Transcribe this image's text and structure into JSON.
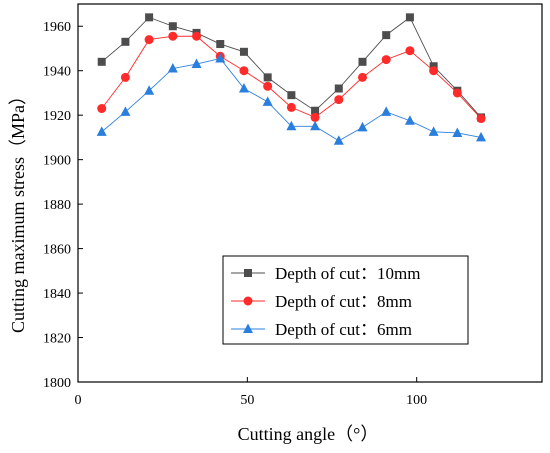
{
  "chart_data": {
    "type": "line",
    "xlabel": "Cutting angle（°）",
    "ylabel": "Cutting maximum stress（MPa）",
    "xlim": [
      0,
      137
    ],
    "ylim": [
      1800,
      1970
    ],
    "xticks": [
      0,
      50,
      100
    ],
    "yticks": [
      1800,
      1820,
      1840,
      1860,
      1880,
      1900,
      1920,
      1940,
      1960
    ],
    "x": [
      7,
      14,
      21,
      28,
      35,
      42,
      49,
      56,
      63,
      70,
      77,
      84,
      91,
      98,
      105,
      112,
      119
    ],
    "grid": false,
    "legend_position": "bottom-right",
    "series": [
      {
        "name": "Depth of cut：10mm",
        "color": "#4d4d4d",
        "marker": "square",
        "values": [
          1944,
          1953,
          1964,
          1960,
          1957,
          1952,
          1948.5,
          1937,
          1929,
          1922,
          1932,
          1944,
          1956,
          1964,
          1942,
          1931,
          1919
        ]
      },
      {
        "name": "Depth of cut：8mm",
        "color": "#ff2a2a",
        "marker": "circle",
        "values": [
          1923,
          1937,
          1954,
          1955.5,
          1955.5,
          1946.5,
          1940,
          1933,
          1923.5,
          1919,
          1927,
          1937,
          1945,
          1949,
          1940,
          1930,
          1918.5
        ]
      },
      {
        "name": "Depth of cut：6mm",
        "color": "#2a7fdc",
        "marker": "triangle",
        "values": [
          1912.5,
          1921.5,
          1931,
          1941,
          1943,
          1945.5,
          1932,
          1926,
          1915,
          1915,
          1908.5,
          1914.5,
          1921.5,
          1917.5,
          1912.5,
          1912,
          1910
        ]
      }
    ]
  }
}
